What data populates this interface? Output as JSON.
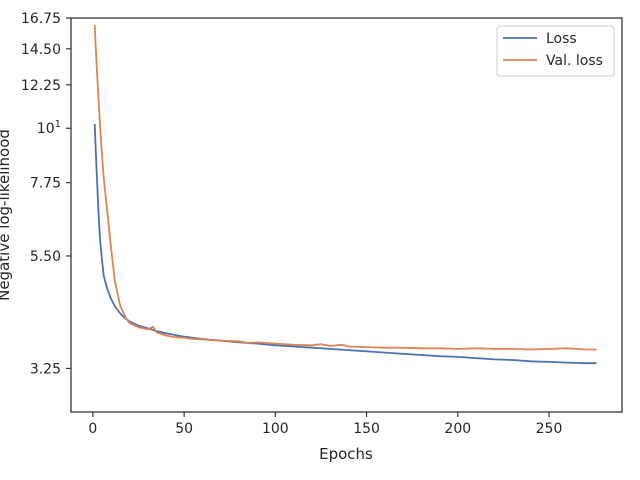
{
  "chart_data": {
    "type": "line",
    "title": "",
    "xlabel": "Epochs",
    "ylabel": "Negative log-likelihood",
    "yscale": "log",
    "xlim": [
      -12,
      290
    ],
    "ylim": [
      2.65,
      16.75
    ],
    "grid": false,
    "legend_position": "top-right",
    "x_ticks": [
      0,
      50,
      100,
      150,
      200,
      250
    ],
    "x_tick_labels": [
      "0",
      "50",
      "100",
      "150",
      "200",
      "250"
    ],
    "y_ticks": [
      {
        "value": 16.75,
        "label": "16.75"
      },
      {
        "value": 14.5,
        "label": "14.50"
      },
      {
        "value": 12.25,
        "label": "12.25"
      },
      {
        "value": 10,
        "label": "10",
        "exponent": "1"
      },
      {
        "value": 7.75,
        "label": "7.75"
      },
      {
        "value": 5.5,
        "label": "5.50"
      },
      {
        "value": 3.25,
        "label": "3.25"
      }
    ],
    "series": [
      {
        "name": "Loss",
        "color": "#4c72b0",
        "x": [
          1,
          2,
          3,
          4,
          5,
          6,
          8,
          10,
          12,
          15,
          18,
          20,
          25,
          30,
          35,
          40,
          45,
          50,
          60,
          70,
          80,
          90,
          100,
          110,
          120,
          130,
          140,
          150,
          160,
          170,
          180,
          190,
          200,
          210,
          220,
          230,
          240,
          250,
          260,
          270,
          276
        ],
        "y": [
          10.2,
          8.3,
          6.8,
          5.9,
          5.4,
          5.0,
          4.7,
          4.5,
          4.35,
          4.2,
          4.1,
          4.05,
          3.97,
          3.92,
          3.87,
          3.83,
          3.8,
          3.77,
          3.73,
          3.7,
          3.67,
          3.65,
          3.62,
          3.6,
          3.58,
          3.56,
          3.54,
          3.52,
          3.5,
          3.48,
          3.46,
          3.44,
          3.43,
          3.41,
          3.39,
          3.38,
          3.36,
          3.35,
          3.34,
          3.33,
          3.33
        ]
      },
      {
        "name": "Val. loss",
        "color": "#dd8452",
        "x": [
          1,
          2,
          3,
          4,
          5,
          6,
          8,
          10,
          12,
          15,
          18,
          20,
          25,
          30,
          33,
          35,
          40,
          45,
          50,
          55,
          60,
          70,
          80,
          85,
          90,
          100,
          110,
          120,
          125,
          130,
          137,
          140,
          150,
          160,
          170,
          180,
          190,
          200,
          210,
          220,
          230,
          240,
          250,
          260,
          270,
          276
        ],
        "y": [
          16.2,
          13.6,
          11.6,
          10.0,
          8.8,
          7.9,
          6.7,
          5.7,
          4.9,
          4.35,
          4.12,
          4.02,
          3.94,
          3.9,
          3.95,
          3.84,
          3.79,
          3.76,
          3.75,
          3.73,
          3.72,
          3.7,
          3.69,
          3.66,
          3.67,
          3.65,
          3.63,
          3.62,
          3.64,
          3.61,
          3.63,
          3.6,
          3.59,
          3.58,
          3.58,
          3.57,
          3.57,
          3.56,
          3.57,
          3.56,
          3.56,
          3.55,
          3.56,
          3.57,
          3.55,
          3.55
        ]
      }
    ]
  }
}
